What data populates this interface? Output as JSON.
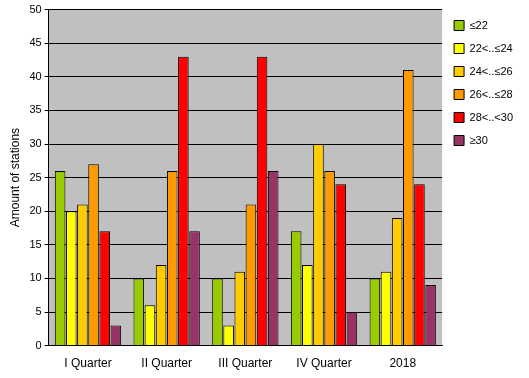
{
  "chart_data": {
    "type": "bar",
    "y_label": "Amount of stations",
    "categories": [
      "I Quarter",
      "II Quarter",
      "III Quarter",
      "IV Quarter",
      "2018"
    ],
    "series": [
      {
        "name": "≤22",
        "color": "#99cc00",
        "values": [
          26,
          10,
          10,
          17,
          10
        ]
      },
      {
        "name": "22<..≤24",
        "color": "#ffff00",
        "values": [
          20,
          6,
          3,
          12,
          11
        ]
      },
      {
        "name": "24<..≤26",
        "color": "#ffcc00",
        "values": [
          21,
          12,
          11,
          30,
          19
        ]
      },
      {
        "name": "26<..≤28",
        "color": "#ff9900",
        "values": [
          27,
          26,
          21,
          26,
          41
        ]
      },
      {
        "name": "28<..<30",
        "color": "#ff0000",
        "values": [
          17,
          43,
          43,
          24,
          24
        ]
      },
      {
        "name": "≥30",
        "color": "#993366",
        "values": [
          3,
          17,
          26,
          5,
          9
        ]
      }
    ],
    "ylim": [
      0,
      50
    ],
    "yticks": [
      0,
      5,
      10,
      15,
      20,
      25,
      30,
      35,
      40,
      45,
      50
    ],
    "grid": true,
    "legend": "top-right"
  }
}
